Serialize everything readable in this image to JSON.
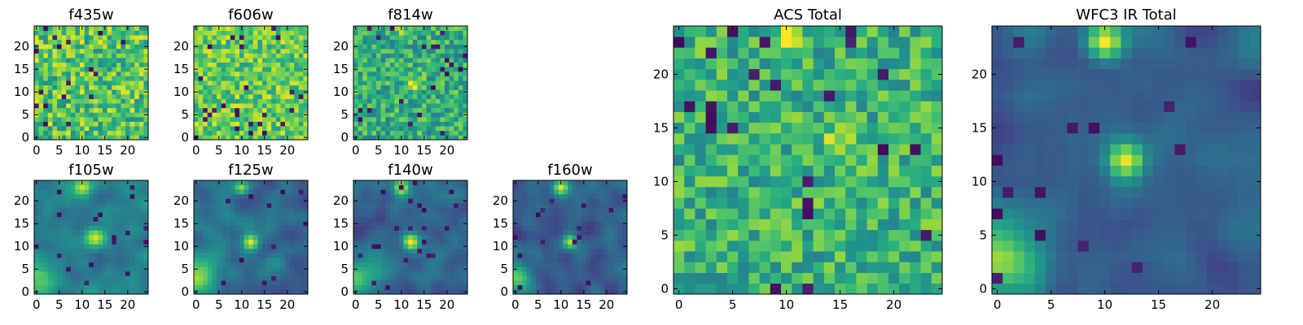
{
  "palette": [
    "#440154",
    "#472d7b",
    "#3b528b",
    "#2c728e",
    "#21918c",
    "#28ae80",
    "#5ec962",
    "#addc30",
    "#fde725"
  ],
  "chart_data": [
    {
      "type": "heatmap",
      "title": "f435w",
      "grid_size": 25,
      "xticks": [
        0,
        5,
        10,
        15,
        20
      ],
      "yticks": [
        0,
        5,
        10,
        15,
        20
      ],
      "xlim": [
        0,
        24
      ],
      "ylim": [
        0,
        24
      ],
      "character": "noise",
      "seed": 11,
      "base": 0.72,
      "spread": 0.24,
      "dark_frac": 0.04,
      "blobs": []
    },
    {
      "type": "heatmap",
      "title": "f606w",
      "grid_size": 25,
      "xticks": [
        0,
        5,
        10,
        15,
        20
      ],
      "yticks": [
        0,
        5,
        10,
        15,
        20
      ],
      "xlim": [
        0,
        24
      ],
      "ylim": [
        0,
        24
      ],
      "character": "noise",
      "seed": 23,
      "base": 0.76,
      "spread": 0.2,
      "dark_frac": 0.035,
      "blobs": []
    },
    {
      "type": "heatmap",
      "title": "f814w",
      "grid_size": 25,
      "xticks": [
        0,
        5,
        10,
        15,
        20
      ],
      "yticks": [
        0,
        5,
        10,
        15,
        20
      ],
      "xlim": [
        0,
        24
      ],
      "ylim": [
        0,
        24
      ],
      "character": "noise",
      "seed": 37,
      "base": 0.62,
      "spread": 0.2,
      "dark_frac": 0.035,
      "blobs": [
        {
          "x": 13,
          "y": 12,
          "amp": 0.3,
          "sigma": 1.2
        },
        {
          "x": 10,
          "y": 23,
          "amp": 0.25,
          "sigma": 1.0
        }
      ]
    },
    {
      "type": "heatmap",
      "title": "f105w",
      "grid_size": 25,
      "xticks": [
        0,
        5,
        10,
        15,
        20
      ],
      "yticks": [
        0,
        5,
        10,
        15,
        20
      ],
      "xlim": [
        0,
        24
      ],
      "ylim": [
        0,
        24
      ],
      "character": "smooth",
      "seed": 41,
      "base": 0.42,
      "spread": 0.14,
      "dark_frac": 0.02,
      "blobs": [
        {
          "x": 10,
          "y": 23,
          "amp": 0.55,
          "sigma": 1.4
        },
        {
          "x": 13,
          "y": 12,
          "amp": 0.5,
          "sigma": 1.6
        },
        {
          "x": 0,
          "y": 3,
          "amp": 0.4,
          "sigma": 3.0
        }
      ]
    },
    {
      "type": "heatmap",
      "title": "f125w",
      "grid_size": 25,
      "xticks": [
        0,
        5,
        10,
        15,
        20
      ],
      "yticks": [
        0,
        5,
        10,
        15,
        20
      ],
      "xlim": [
        0,
        24
      ],
      "ylim": [
        0,
        24
      ],
      "character": "smooth",
      "seed": 53,
      "base": 0.36,
      "spread": 0.14,
      "dark_frac": 0.02,
      "blobs": [
        {
          "x": 10,
          "y": 23,
          "amp": 0.6,
          "sigma": 1.2
        },
        {
          "x": 12,
          "y": 11,
          "amp": 0.6,
          "sigma": 1.2
        },
        {
          "x": 0,
          "y": 3,
          "amp": 0.45,
          "sigma": 3.0
        }
      ]
    },
    {
      "type": "heatmap",
      "title": "f140w",
      "grid_size": 25,
      "xticks": [
        0,
        5,
        10,
        15,
        20
      ],
      "yticks": [
        0,
        5,
        10,
        15,
        20
      ],
      "xlim": [
        0,
        24
      ],
      "ylim": [
        0,
        24
      ],
      "character": "smooth",
      "seed": 67,
      "base": 0.34,
      "spread": 0.14,
      "dark_frac": 0.025,
      "blobs": [
        {
          "x": 10,
          "y": 23,
          "amp": 0.6,
          "sigma": 1.2
        },
        {
          "x": 12,
          "y": 11,
          "amp": 0.6,
          "sigma": 1.2
        },
        {
          "x": 0,
          "y": 3,
          "amp": 0.45,
          "sigma": 3.0
        }
      ]
    },
    {
      "type": "heatmap",
      "title": "f160w",
      "grid_size": 25,
      "xticks": [
        0,
        5,
        10,
        15,
        20
      ],
      "yticks": [
        0,
        5,
        10,
        15,
        20
      ],
      "xlim": [
        0,
        24
      ],
      "ylim": [
        0,
        24
      ],
      "character": "smooth",
      "seed": 79,
      "base": 0.3,
      "spread": 0.14,
      "dark_frac": 0.03,
      "blobs": [
        {
          "x": 10,
          "y": 23,
          "amp": 0.65,
          "sigma": 1.2
        },
        {
          "x": 12,
          "y": 11,
          "amp": 0.6,
          "sigma": 1.1
        },
        {
          "x": 0,
          "y": 3,
          "amp": 0.5,
          "sigma": 2.6
        }
      ]
    },
    {
      "type": "heatmap",
      "title": "ACS Total",
      "grid_size": 25,
      "xticks": [
        0,
        5,
        10,
        15,
        20
      ],
      "yticks": [
        0,
        5,
        10,
        15,
        20
      ],
      "xlim": [
        0,
        24
      ],
      "ylim": [
        0,
        24
      ],
      "character": "noise",
      "seed": 97,
      "base": 0.64,
      "spread": 0.2,
      "dark_frac": 0.04,
      "blobs": [
        {
          "x": 10,
          "y": 23,
          "amp": 0.35,
          "sigma": 0.9
        },
        {
          "x": 15,
          "y": 14,
          "amp": 0.25,
          "sigma": 1.0
        }
      ]
    },
    {
      "type": "heatmap",
      "title": "WFC3 IR Total",
      "grid_size": 25,
      "xticks": [
        0,
        5,
        10,
        15,
        20
      ],
      "yticks": [
        0,
        5,
        10,
        15,
        20
      ],
      "xlim": [
        0,
        24
      ],
      "ylim": [
        0,
        24
      ],
      "character": "smooth",
      "seed": 113,
      "base": 0.3,
      "spread": 0.12,
      "dark_frac": 0.03,
      "blobs": [
        {
          "x": 10,
          "y": 23,
          "amp": 0.7,
          "sigma": 1.2
        },
        {
          "x": 12,
          "y": 12,
          "amp": 0.65,
          "sigma": 1.2
        },
        {
          "x": 0,
          "y": 3,
          "amp": 0.55,
          "sigma": 2.6
        }
      ]
    }
  ]
}
